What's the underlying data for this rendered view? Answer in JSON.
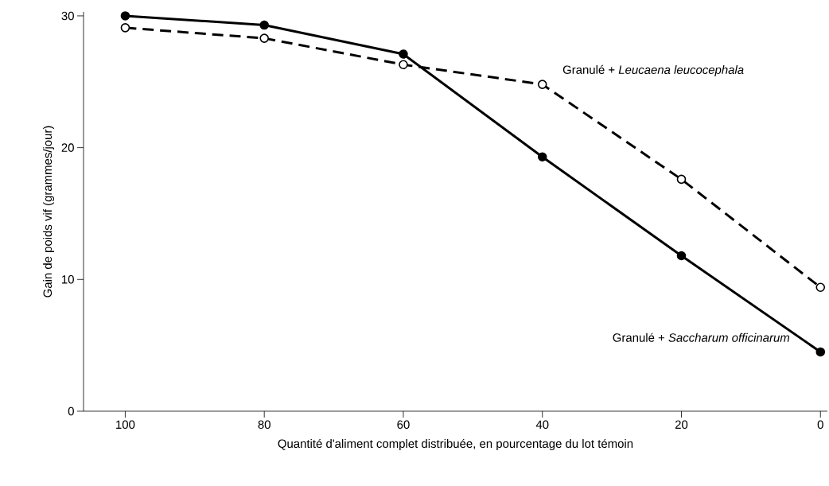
{
  "chart_data": {
    "type": "line",
    "xlabel": "Quantité d'aliment complet distribuée, en pourcentage du lot témoin",
    "ylabel": "Gain de poids vif (grammes/jour)",
    "x": [
      100,
      80,
      60,
      40,
      20,
      0
    ],
    "series": [
      {
        "name": "Granulé + *Saccharum officinarum*",
        "color": "#000000",
        "line_style": "solid",
        "values": [
          30.0,
          29.3,
          27.1,
          19.3,
          11.8,
          4.5
        ]
      },
      {
        "name": "Granulé + *Leucaena leucocephala*",
        "color": "#000000",
        "line_style": "dashed",
        "values": [
          29.1,
          28.3,
          26.3,
          24.8,
          17.6,
          9.4
        ]
      }
    ],
    "xlim": [
      106,
      -1
    ],
    "ylim": [
      0,
      30.3
    ],
    "xticks": [
      100,
      80,
      60,
      40,
      20,
      0
    ],
    "yticks": [
      0,
      10,
      20,
      30
    ],
    "marker": "circle",
    "grid": false
  }
}
